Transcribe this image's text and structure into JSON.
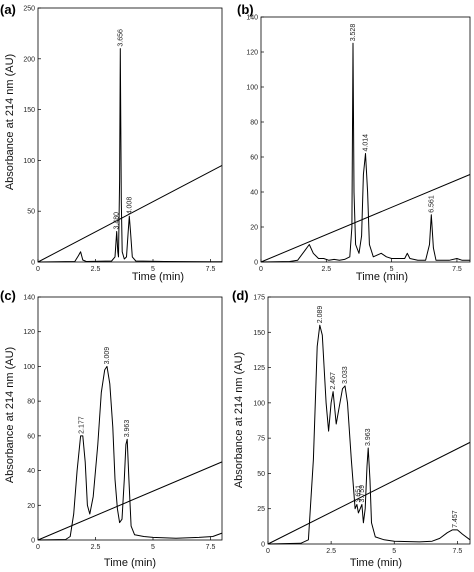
{
  "chart_data": [
    {
      "panel": "(a)",
      "type": "line",
      "xlabel": "Time (min)",
      "ylabel": "Absorbance at 214 nm (AU)",
      "xlim": [
        0,
        8
      ],
      "ylim": [
        0,
        250
      ],
      "xticks": [
        "0",
        "2.5",
        "5",
        "7.5"
      ],
      "xtick_values": [
        0,
        2.5,
        5,
        7.5
      ],
      "yticks": [
        "0",
        "50",
        "100",
        "150",
        "200",
        "250"
      ],
      "ytick_values": [
        0,
        50,
        100,
        150,
        200,
        250
      ],
      "gradient_line": [
        [
          0,
          0
        ],
        [
          8,
          95
        ]
      ],
      "trace": [
        [
          0,
          0
        ],
        [
          1.6,
          0.5
        ],
        [
          1.75,
          6
        ],
        [
          1.85,
          10
        ],
        [
          1.95,
          2
        ],
        [
          2.1,
          0.5
        ],
        [
          3.2,
          1
        ],
        [
          3.35,
          5
        ],
        [
          3.42,
          30
        ],
        [
          3.47,
          10
        ],
        [
          3.5,
          5
        ],
        [
          3.55,
          80
        ],
        [
          3.58,
          210
        ],
        [
          3.62,
          60
        ],
        [
          3.66,
          10
        ],
        [
          3.75,
          3
        ],
        [
          3.85,
          5
        ],
        [
          3.92,
          30
        ],
        [
          3.97,
          45
        ],
        [
          4.02,
          30
        ],
        [
          4.1,
          5
        ],
        [
          4.25,
          1
        ],
        [
          5.5,
          0.5
        ],
        [
          7.5,
          0.3
        ],
        [
          8,
          0.3
        ]
      ],
      "peaks": [
        {
          "label": "3.656",
          "x": 3.58,
          "y": 210
        },
        {
          "label": "3.480",
          "x": 3.42,
          "y": 30
        },
        {
          "label": "4.008",
          "x": 3.97,
          "y": 45
        }
      ]
    },
    {
      "panel": "(b)",
      "type": "line",
      "xlabel": "Time (min)",
      "ylabel": "",
      "xlim": [
        0,
        8
      ],
      "ylim": [
        0,
        140
      ],
      "xticks": [
        "0",
        "2.5",
        "5",
        "7.5"
      ],
      "xtick_values": [
        0,
        2.5,
        5,
        7.5
      ],
      "yticks": [
        "0",
        "20",
        "40",
        "60",
        "80",
        "100",
        "120",
        "140"
      ],
      "ytick_values": [
        0,
        20,
        40,
        60,
        80,
        100,
        120,
        140
      ],
      "gradient_line": [
        [
          0,
          0
        ],
        [
          8,
          50
        ]
      ],
      "trace": [
        [
          0,
          0
        ],
        [
          1.1,
          0.3
        ],
        [
          1.4,
          1
        ],
        [
          1.7,
          7
        ],
        [
          1.85,
          10
        ],
        [
          2.0,
          5
        ],
        [
          2.2,
          2
        ],
        [
          2.4,
          2
        ],
        [
          2.6,
          1
        ],
        [
          2.8,
          1.5
        ],
        [
          3.0,
          1
        ],
        [
          3.2,
          1.5
        ],
        [
          3.4,
          3
        ],
        [
          3.48,
          20
        ],
        [
          3.52,
          125
        ],
        [
          3.56,
          40
        ],
        [
          3.62,
          10
        ],
        [
          3.75,
          5
        ],
        [
          3.85,
          15
        ],
        [
          3.92,
          50
        ],
        [
          4.0,
          62
        ],
        [
          4.08,
          40
        ],
        [
          4.15,
          10
        ],
        [
          4.3,
          3
        ],
        [
          4.6,
          5
        ],
        [
          4.8,
          3
        ],
        [
          5.0,
          2
        ],
        [
          5.5,
          2
        ],
        [
          5.6,
          5
        ],
        [
          5.7,
          2
        ],
        [
          6.0,
          1
        ],
        [
          6.3,
          1
        ],
        [
          6.45,
          10
        ],
        [
          6.52,
          27
        ],
        [
          6.6,
          8
        ],
        [
          6.7,
          1
        ],
        [
          7.2,
          1
        ],
        [
          7.5,
          2
        ],
        [
          7.7,
          1
        ],
        [
          8,
          1
        ]
      ],
      "peaks": [
        {
          "label": "3.528",
          "x": 3.52,
          "y": 125
        },
        {
          "label": "4.014",
          "x": 4.0,
          "y": 62
        },
        {
          "label": "6.561",
          "x": 6.52,
          "y": 27
        }
      ]
    },
    {
      "panel": "(c)",
      "type": "line",
      "xlabel": "Time (min)",
      "ylabel": "Absorbance at 214 nm (AU)",
      "xlim": [
        0,
        8
      ],
      "ylim": [
        0,
        140
      ],
      "xticks": [
        "0",
        "2.5",
        "5",
        "7.5"
      ],
      "xtick_values": [
        0,
        2.5,
        5,
        7.5
      ],
      "yticks": [
        "0",
        "20",
        "40",
        "60",
        "80",
        "100",
        "120",
        "140"
      ],
      "ytick_values": [
        0,
        20,
        40,
        60,
        80,
        100,
        120,
        140
      ],
      "gradient_line": [
        [
          0,
          0
        ],
        [
          8,
          45
        ]
      ],
      "trace": [
        [
          0,
          0
        ],
        [
          1.2,
          0.3
        ],
        [
          1.4,
          2
        ],
        [
          1.55,
          15
        ],
        [
          1.7,
          40
        ],
        [
          1.85,
          60
        ],
        [
          1.95,
          60
        ],
        [
          2.05,
          45
        ],
        [
          2.15,
          20
        ],
        [
          2.25,
          15
        ],
        [
          2.4,
          25
        ],
        [
          2.6,
          55
        ],
        [
          2.75,
          85
        ],
        [
          2.9,
          98
        ],
        [
          3.0,
          100
        ],
        [
          3.12,
          90
        ],
        [
          3.25,
          65
        ],
        [
          3.35,
          35
        ],
        [
          3.45,
          18
        ],
        [
          3.55,
          10
        ],
        [
          3.65,
          12
        ],
        [
          3.75,
          35
        ],
        [
          3.82,
          55
        ],
        [
          3.88,
          58
        ],
        [
          3.95,
          35
        ],
        [
          4.05,
          8
        ],
        [
          4.2,
          3
        ],
        [
          4.6,
          2
        ],
        [
          5.0,
          1.5
        ],
        [
          6.0,
          1
        ],
        [
          7.0,
          1.5
        ],
        [
          7.6,
          2
        ],
        [
          8,
          4
        ]
      ],
      "peaks": [
        {
          "label": "2.177",
          "x": 1.9,
          "y": 60
        },
        {
          "label": "3.009",
          "x": 3.0,
          "y": 100
        },
        {
          "label": "3.963",
          "x": 3.88,
          "y": 58
        }
      ]
    },
    {
      "panel": "(d)",
      "type": "line",
      "xlabel": "Time (min)",
      "ylabel": "Absorbance at 214 nm (AU)",
      "xlim": [
        0,
        8
      ],
      "ylim": [
        0,
        175
      ],
      "xticks": [
        "0",
        "2.5",
        "5",
        "7.5"
      ],
      "xtick_values": [
        0,
        2.5,
        5,
        7.5
      ],
      "yticks": [
        "0",
        "25",
        "50",
        "75",
        "100",
        "125",
        "150",
        "175"
      ],
      "ytick_values": [
        0,
        25,
        50,
        75,
        100,
        125,
        150,
        175
      ],
      "gradient_line": [
        [
          0,
          0
        ],
        [
          8,
          72
        ]
      ],
      "trace": [
        [
          0,
          0
        ],
        [
          1.3,
          0.5
        ],
        [
          1.6,
          3
        ],
        [
          1.8,
          60
        ],
        [
          1.95,
          140
        ],
        [
          2.05,
          155
        ],
        [
          2.15,
          148
        ],
        [
          2.3,
          100
        ],
        [
          2.4,
          80
        ],
        [
          2.5,
          100
        ],
        [
          2.58,
          108
        ],
        [
          2.7,
          85
        ],
        [
          2.8,
          95
        ],
        [
          2.95,
          110
        ],
        [
          3.05,
          112
        ],
        [
          3.15,
          100
        ],
        [
          3.3,
          60
        ],
        [
          3.45,
          25
        ],
        [
          3.52,
          28
        ],
        [
          3.58,
          22
        ],
        [
          3.65,
          25
        ],
        [
          3.72,
          28
        ],
        [
          3.78,
          15
        ],
        [
          3.85,
          25
        ],
        [
          3.92,
          55
        ],
        [
          3.97,
          68
        ],
        [
          4.04,
          45
        ],
        [
          4.1,
          15
        ],
        [
          4.25,
          5
        ],
        [
          4.6,
          3
        ],
        [
          5.0,
          2
        ],
        [
          6.0,
          1.5
        ],
        [
          6.5,
          2
        ],
        [
          6.8,
          4
        ],
        [
          7.1,
          8
        ],
        [
          7.3,
          10
        ],
        [
          7.5,
          10
        ],
        [
          7.7,
          7
        ],
        [
          8,
          3
        ]
      ],
      "peaks": [
        {
          "label": "2.089",
          "x": 2.05,
          "y": 155
        },
        {
          "label": "2.467",
          "x": 2.58,
          "y": 108
        },
        {
          "label": "3.033",
          "x": 3.05,
          "y": 112
        },
        {
          "label": "3.651",
          "x": 3.58,
          "y": 28
        },
        {
          "label": "3.759",
          "x": 3.72,
          "y": 28
        },
        {
          "label": "3.963",
          "x": 3.97,
          "y": 68
        },
        {
          "label": "7.457",
          "x": 7.4,
          "y": 10
        }
      ]
    }
  ]
}
